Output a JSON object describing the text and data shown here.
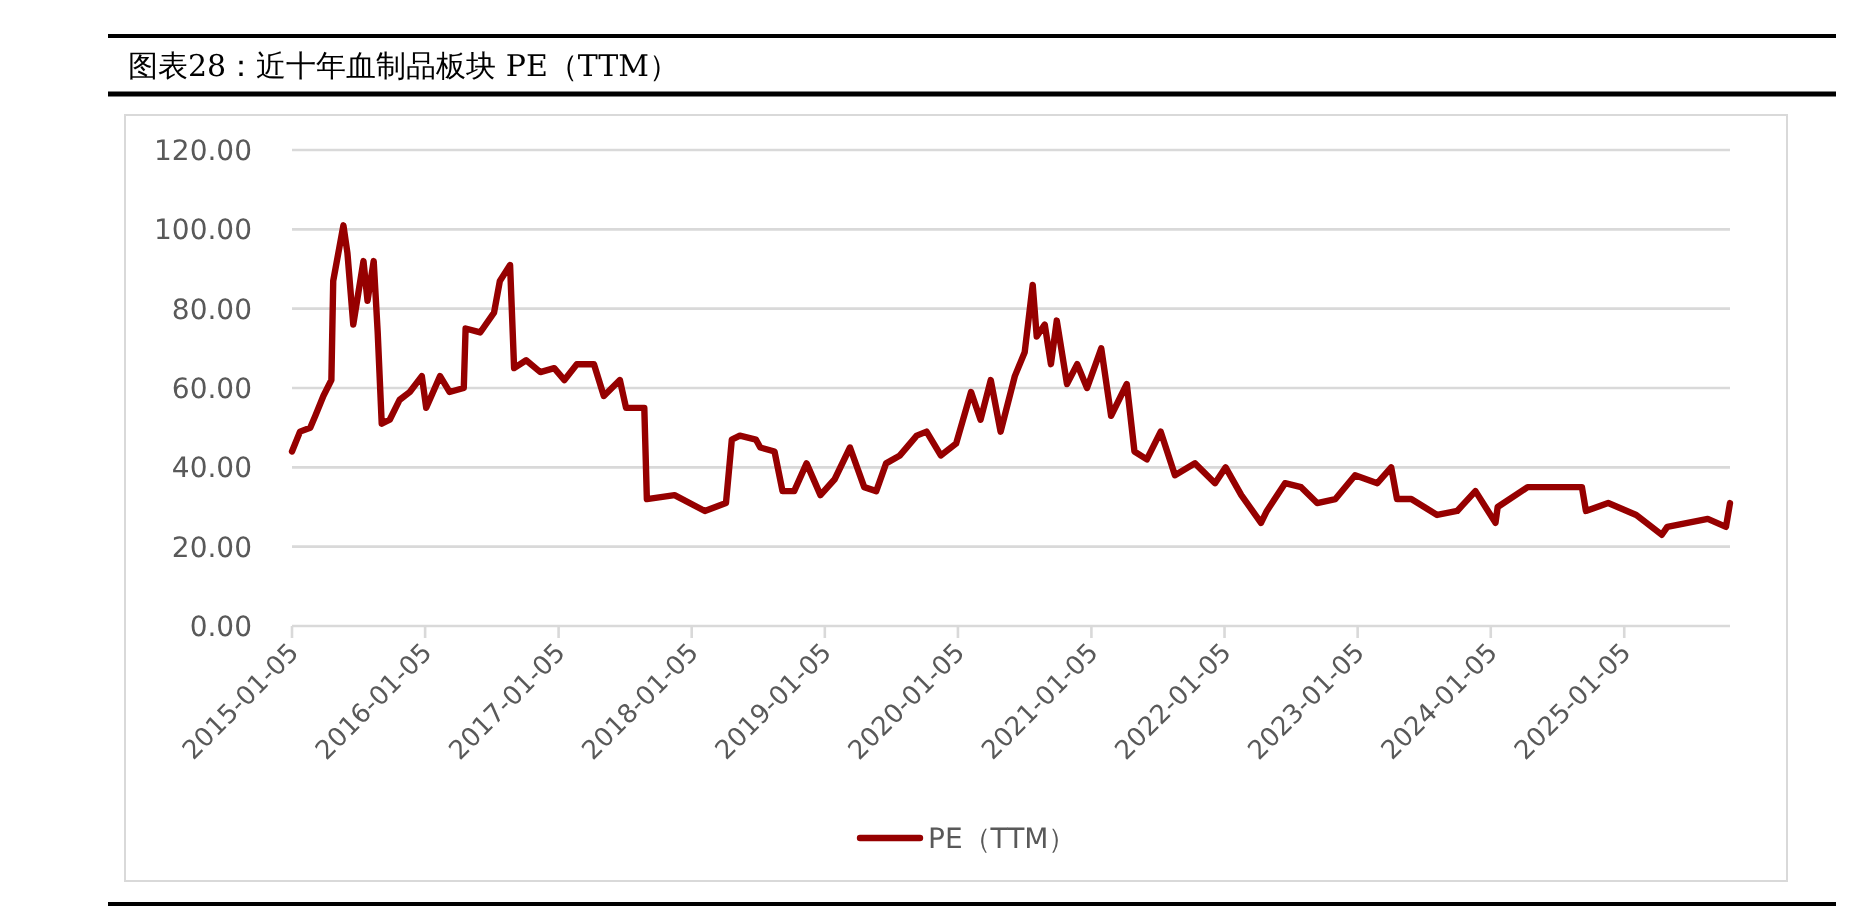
{
  "chart_data": {
    "type": "line",
    "title": "图表28：近十年血制品板块 PE（TTM）",
    "xlim": [
      "2015-01-05",
      "2025-10-22"
    ],
    "xticks": [
      "2015-01-05",
      "2016-01-05",
      "2017-01-05",
      "2018-01-05",
      "2019-01-05",
      "2020-01-05",
      "2021-01-05",
      "2022-01-05",
      "2023-01-05",
      "2024-01-05",
      "2025-01-05"
    ],
    "ylim": [
      0,
      120
    ],
    "yticks": [
      {
        "value": 0,
        "label": "0.00"
      },
      {
        "value": 20,
        "label": "20.00"
      },
      {
        "value": 40,
        "label": "40.00"
      },
      {
        "value": 60,
        "label": "60.00"
      },
      {
        "value": 80,
        "label": "80.00"
      },
      {
        "value": 100,
        "label": "100.00"
      },
      {
        "value": 120,
        "label": "120.00"
      }
    ],
    "grid": "y",
    "legend": "bottom",
    "marker": "none",
    "line_style": "solid",
    "x": [
      "2015-01-05",
      "2015-01-27",
      "2015-02-24",
      "2015-03-10",
      "2015-04-01",
      "2015-04-23",
      "2015-04-28",
      "2015-05-26",
      "2015-06-06",
      "2015-06-22",
      "2015-07-20",
      "2015-07-31",
      "2015-08-17",
      "2015-08-28",
      "2015-09-08",
      "2015-09-30",
      "2015-10-27",
      "2015-11-24",
      "2015-12-27",
      "2016-01-08",
      "2016-02-15",
      "2016-03-12",
      "2016-04-20",
      "2016-04-25",
      "2016-06-04",
      "2016-07-12",
      "2016-07-28",
      "2016-08-25",
      "2016-09-05",
      "2016-10-08",
      "2016-11-16",
      "2016-12-24",
      "2017-01-21",
      "2017-02-24",
      "2017-04-12",
      "2017-05-09",
      "2017-06-22",
      "2017-07-09",
      "2017-08-28",
      "2017-09-04",
      "2017-11-19",
      "2018-02-10",
      "2018-04-09",
      "2018-04-25",
      "2018-05-17",
      "2018-06-30",
      "2018-07-12",
      "2018-08-20",
      "2018-09-11",
      "2018-10-13",
      "2018-11-16",
      "2018-12-24",
      "2019-02-01",
      "2019-03-15",
      "2019-04-23",
      "2019-05-26",
      "2019-06-22",
      "2019-07-30",
      "2019-09-14",
      "2019-10-11",
      "2019-11-19",
      "2019-12-31",
      "2020-02-10",
      "2020-03-07",
      "2020-04-04",
      "2020-05-01",
      "2020-06-09",
      "2020-07-06",
      "2020-07-28",
      "2020-08-08",
      "2020-08-30",
      "2020-09-16",
      "2020-10-02",
      "2020-10-30",
      "2020-11-27",
      "2020-12-24",
      "2021-02-01",
      "2021-02-28",
      "2021-04-12",
      "2021-05-03",
      "2021-06-06",
      "2021-07-14",
      "2021-08-22",
      "2021-10-16",
      "2021-12-10",
      "2022-01-08",
      "2022-02-20",
      "2022-04-15",
      "2022-05-01",
      "2022-06-20",
      "2022-08-03",
      "2022-09-16",
      "2022-11-05",
      "2022-12-29",
      "2023-02-28",
      "2023-04-07",
      "2023-04-23",
      "2023-06-01",
      "2023-08-11",
      "2023-10-05",
      "2023-11-24",
      "2024-01-18",
      "2024-01-24",
      "2024-04-15",
      "2024-07-01",
      "2024-09-11",
      "2024-09-22",
      "2024-11-22",
      "2025-02-07",
      "2025-04-18",
      "2025-05-03",
      "2025-08-22",
      "2025-10-11",
      "2025-10-22"
    ],
    "series": [
      {
        "name": "PE（TTM）",
        "color": "#960000",
        "values": [
          44,
          49,
          50,
          53,
          58,
          62,
          87,
          101,
          94,
          76,
          92,
          82,
          92,
          74,
          51,
          52,
          57,
          59,
          63,
          55,
          63,
          59,
          60,
          75,
          74,
          79,
          87,
          91,
          65,
          67,
          64,
          65,
          62,
          66,
          66,
          58,
          62,
          55,
          55,
          32,
          33,
          29,
          31,
          47,
          48,
          47,
          45,
          44,
          34,
          34,
          41,
          33,
          37,
          45,
          35,
          34,
          41,
          43,
          48,
          49,
          43,
          46,
          59,
          52,
          62,
          49,
          63,
          69,
          86,
          73,
          76,
          66,
          77,
          61,
          66,
          60,
          70,
          53,
          61,
          44,
          42,
          49,
          38,
          41,
          36,
          40,
          33,
          26,
          29,
          36,
          35,
          31,
          32,
          38,
          36,
          40,
          32,
          32,
          28,
          29,
          34,
          26,
          30,
          35,
          35,
          35,
          29,
          31,
          28,
          23,
          25,
          27,
          25,
          31
        ]
      }
    ]
  }
}
